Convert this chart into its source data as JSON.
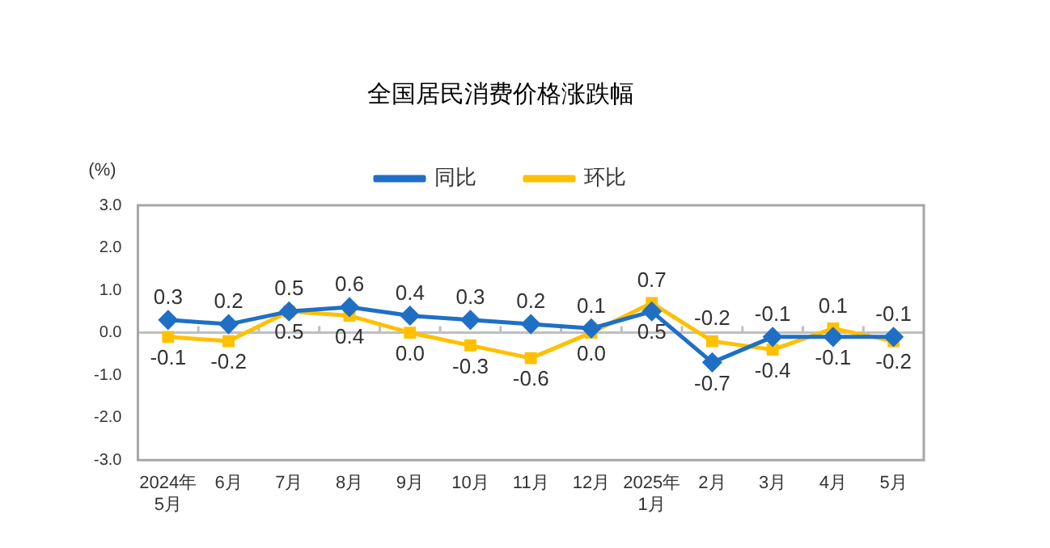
{
  "chart_data": {
    "type": "line",
    "title": "全国居民消费价格涨跌幅",
    "ylabel": "(%)",
    "categories": [
      "2024年\n5月",
      "6月",
      "7月",
      "8月",
      "9月",
      "10月",
      "11月",
      "12月",
      "2025年\n1月",
      "2月",
      "3月",
      "4月",
      "5月"
    ],
    "series": [
      {
        "name": "同比",
        "color": "#1f6fc5",
        "marker": "diamond",
        "values": [
          0.3,
          0.2,
          0.5,
          0.6,
          0.4,
          0.3,
          0.2,
          0.1,
          0.5,
          -0.7,
          -0.1,
          -0.1,
          -0.1
        ],
        "value_labels": [
          "0.3",
          "0.2",
          "0.5",
          "0.6",
          "0.4",
          "0.3",
          "0.2",
          "0.1",
          "0.5",
          "-0.7",
          "-0.1",
          "-0.1",
          "-0.1"
        ]
      },
      {
        "name": "环比",
        "color": "#ffc000",
        "marker": "square",
        "values": [
          -0.1,
          -0.2,
          0.5,
          0.4,
          0.0,
          -0.3,
          -0.6,
          0.0,
          0.7,
          -0.2,
          -0.4,
          0.1,
          -0.2
        ],
        "value_labels": [
          "-0.1",
          "-0.2",
          "0.5",
          "0.4",
          "0.0",
          "-0.3",
          "-0.6",
          "0.0",
          "0.7",
          "-0.2",
          "-0.4",
          "0.1",
          "-0.2"
        ]
      }
    ],
    "ylim": [
      -3,
      3
    ],
    "yticks": [
      {
        "value": -3,
        "label": "-3.0"
      },
      {
        "value": -2,
        "label": "-2.0"
      },
      {
        "value": -1,
        "label": "-1.0"
      },
      {
        "value": 0,
        "label": "0.0"
      },
      {
        "value": 1,
        "label": "1.0"
      },
      {
        "value": 2,
        "label": "2.0"
      },
      {
        "value": 3,
        "label": "3.0"
      }
    ],
    "ref_lines": [
      {
        "axis": "y",
        "value": 0,
        "color": "#bfbfbf"
      }
    ],
    "grid": false,
    "legend": "top",
    "line_style": "solid"
  }
}
